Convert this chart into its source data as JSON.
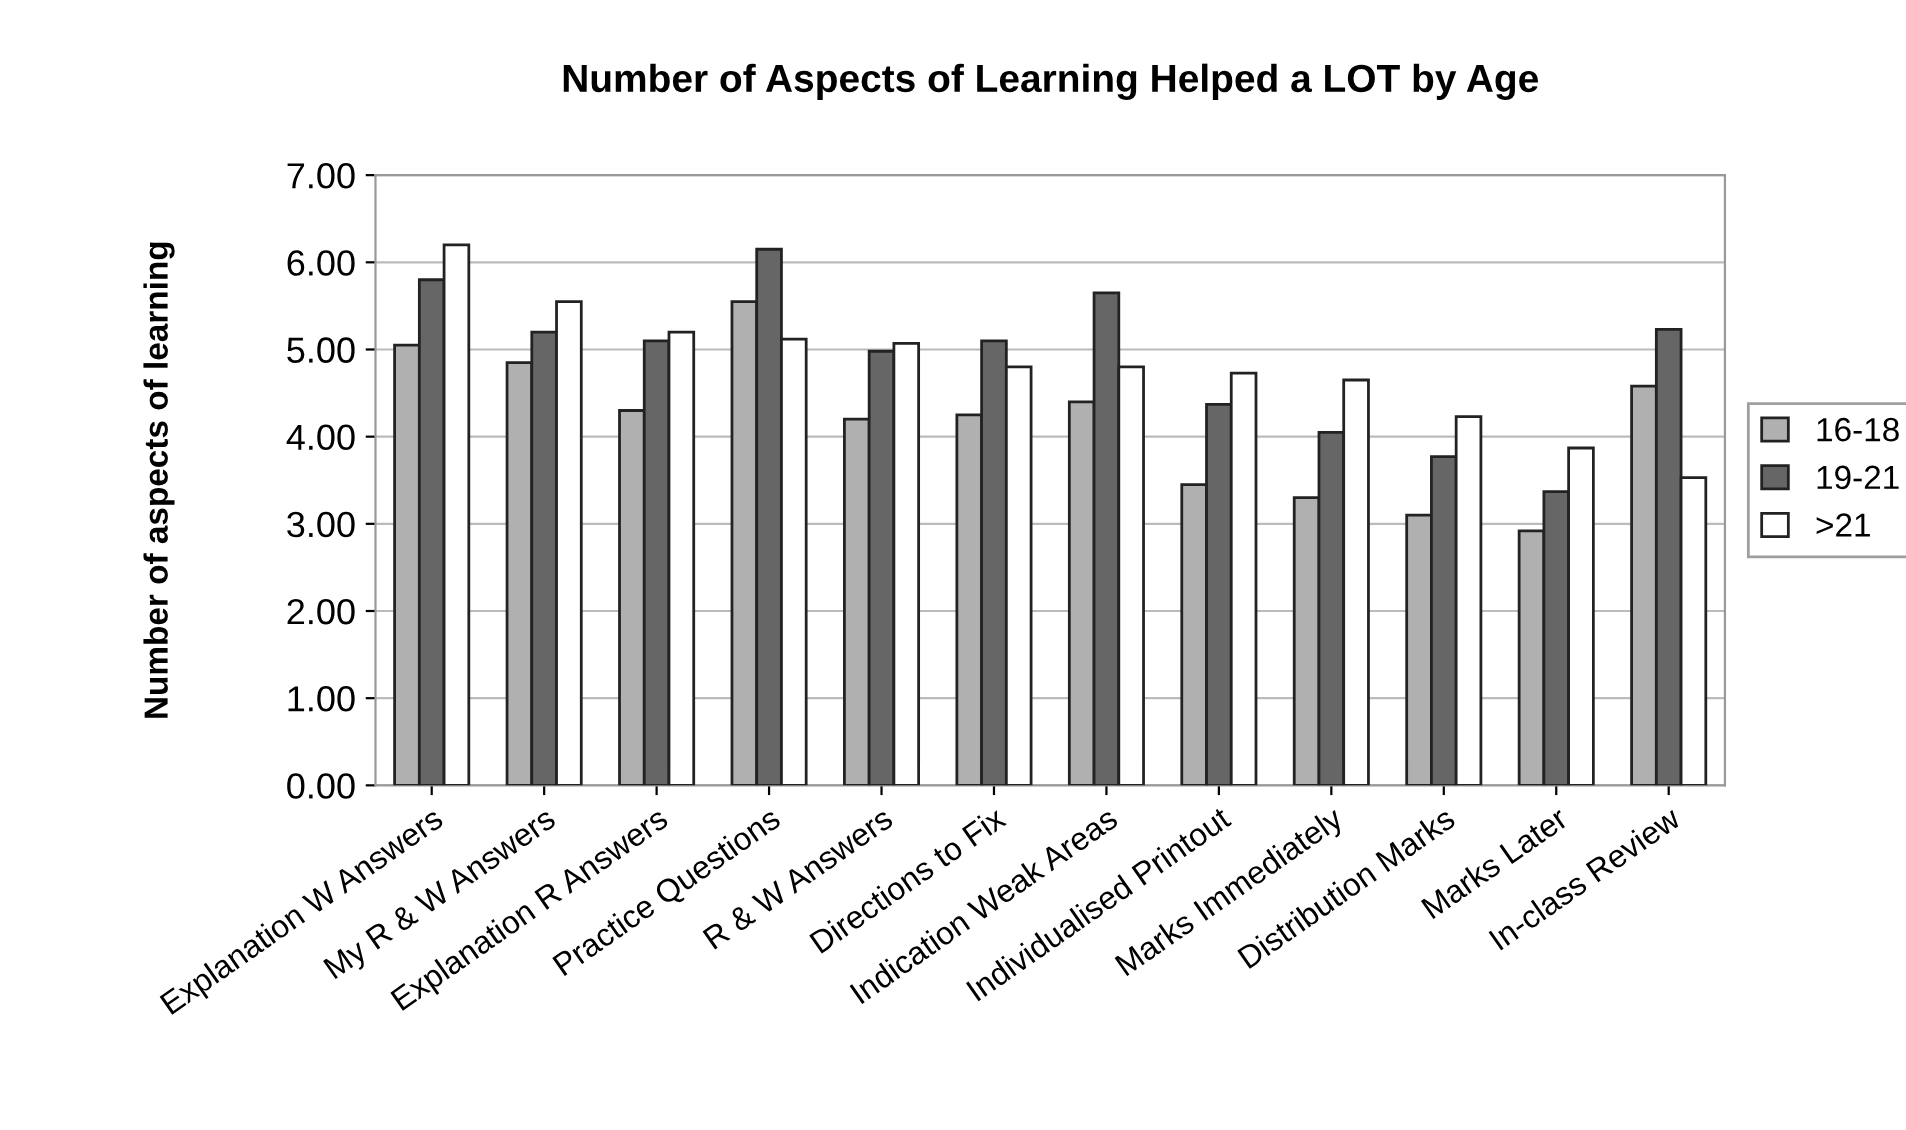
{
  "chart_data": {
    "type": "bar",
    "title": "Number of Aspects of Learning Helped a LOT by Age",
    "ylabel": "Number of aspects of learning",
    "categories": [
      "Explanation W Answers",
      "My R & W Answers",
      "Explanation R Answers",
      "Practice Questions",
      "R & W Answers",
      "Directions to Fix",
      "Indication Weak Areas",
      "Individualised Printout",
      "Marks Immediately",
      "Distribution Marks",
      "Marks Later",
      "In-class Review"
    ],
    "series": [
      {
        "name": "16-18",
        "color": "#b0b0b0",
        "values": [
          5.05,
          4.85,
          4.3,
          5.55,
          4.2,
          4.25,
          4.4,
          3.45,
          3.3,
          3.1,
          2.92,
          4.58
        ]
      },
      {
        "name": "19-21",
        "color": "#666666",
        "values": [
          5.8,
          5.2,
          5.1,
          6.15,
          4.98,
          5.1,
          5.65,
          4.37,
          4.05,
          3.77,
          3.37,
          5.23
        ]
      },
      {
        "name": ">21",
        "color": "#ffffff",
        "values": [
          6.2,
          5.55,
          5.2,
          5.12,
          5.07,
          4.8,
          4.8,
          4.73,
          4.65,
          4.23,
          3.87,
          3.53
        ]
      }
    ],
    "ylim": [
      0,
      7
    ],
    "yticks": [
      {
        "value": 0,
        "label": "0.00"
      },
      {
        "value": 1,
        "label": "1.00"
      },
      {
        "value": 2,
        "label": "2.00"
      },
      {
        "value": 3,
        "label": "3.00"
      },
      {
        "value": 4,
        "label": "4.00"
      },
      {
        "value": 5,
        "label": "5.00"
      },
      {
        "value": 6,
        "label": "6.00"
      },
      {
        "value": 7,
        "label": "7.00"
      }
    ],
    "grid": "y",
    "legend": "right"
  }
}
